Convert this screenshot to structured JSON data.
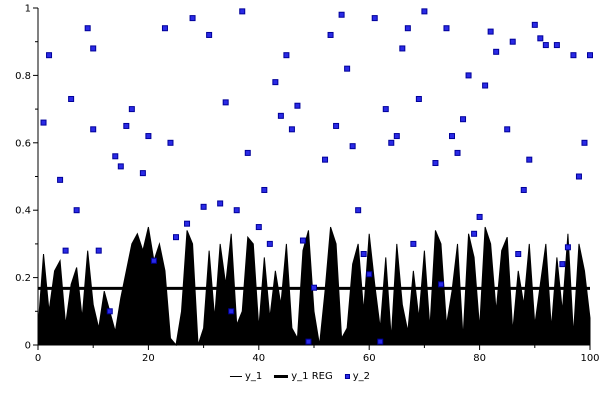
{
  "chart_data": {
    "type": "mixed",
    "title": "",
    "xlabel": "",
    "ylabel": "",
    "xlim": [
      0,
      100
    ],
    "ylim": [
      0,
      1
    ],
    "grid": false,
    "legend_position": "bottom-center",
    "xticks": {
      "major": [
        0,
        20,
        40,
        60,
        80,
        100
      ],
      "labels": [
        "0",
        "20",
        "40",
        "60",
        "80",
        "100"
      ],
      "minor_step": 10
    },
    "yticks": {
      "major": [
        0,
        0.2,
        0.4,
        0.6,
        0.8,
        1
      ],
      "labels": [
        "0",
        "0.2",
        "0.4",
        "0.6",
        "0.8",
        "1"
      ],
      "minor_step": 0.1
    },
    "series": [
      {
        "name": "y_1",
        "type": "area",
        "color": "#000000",
        "x_min": 0,
        "x_max": 100,
        "y": [
          0.05,
          0.27,
          0.1,
          0.22,
          0.25,
          0.06,
          0.18,
          0.23,
          0.08,
          0.28,
          0.12,
          0.05,
          0.16,
          0.1,
          0.04,
          0.14,
          0.22,
          0.3,
          0.33,
          0.28,
          0.35,
          0.25,
          0.3,
          0.22,
          0.02,
          0.0,
          0.1,
          0.34,
          0.3,
          0.0,
          0.05,
          0.28,
          0.08,
          0.3,
          0.18,
          0.33,
          0.06,
          0.1,
          0.32,
          0.3,
          0.05,
          0.26,
          0.08,
          0.22,
          0.12,
          0.3,
          0.05,
          0.02,
          0.28,
          0.34,
          0.1,
          0.0,
          0.16,
          0.35,
          0.3,
          0.02,
          0.05,
          0.24,
          0.3,
          0.1,
          0.33,
          0.18,
          0.05,
          0.26,
          0.02,
          0.3,
          0.12,
          0.04,
          0.22,
          0.08,
          0.28,
          0.05,
          0.34,
          0.3,
          0.06,
          0.16,
          0.3,
          0.02,
          0.33,
          0.26,
          0.05,
          0.35,
          0.3,
          0.1,
          0.28,
          0.32,
          0.04,
          0.22,
          0.12,
          0.3,
          0.06,
          0.18,
          0.3,
          0.05,
          0.26,
          0.1,
          0.33,
          0.03,
          0.3,
          0.22,
          0.08
        ]
      },
      {
        "name": "y_1 REG",
        "type": "line",
        "color": "#000000",
        "stroke_width": 3,
        "x": [
          0,
          100
        ],
        "y": [
          0.168,
          0.168
        ]
      },
      {
        "name": "y_2",
        "type": "scatter",
        "marker": "square",
        "marker_size": 5,
        "color": "#2a2ae6",
        "edge_color": "#00009a",
        "points": [
          [
            1,
            0.66
          ],
          [
            2,
            0.86
          ],
          [
            4,
            0.49
          ],
          [
            5,
            0.28
          ],
          [
            6,
            0.73
          ],
          [
            7,
            0.4
          ],
          [
            9,
            0.94
          ],
          [
            10,
            0.88
          ],
          [
            10,
            0.64
          ],
          [
            11,
            0.28
          ],
          [
            13,
            0.1
          ],
          [
            14,
            0.56
          ],
          [
            15,
            0.53
          ],
          [
            16,
            0.65
          ],
          [
            17,
            0.7
          ],
          [
            19,
            0.51
          ],
          [
            20,
            0.62
          ],
          [
            21,
            0.25
          ],
          [
            23,
            0.94
          ],
          [
            24,
            0.6
          ],
          [
            25,
            0.32
          ],
          [
            27,
            0.36
          ],
          [
            28,
            0.97
          ],
          [
            30,
            0.41
          ],
          [
            31,
            0.92
          ],
          [
            33,
            0.42
          ],
          [
            34,
            0.72
          ],
          [
            35,
            0.1
          ],
          [
            36,
            0.4
          ],
          [
            37,
            0.99
          ],
          [
            38,
            0.57
          ],
          [
            40,
            0.35
          ],
          [
            41,
            0.46
          ],
          [
            42,
            0.3
          ],
          [
            43,
            0.78
          ],
          [
            44,
            0.68
          ],
          [
            45,
            0.86
          ],
          [
            46,
            0.64
          ],
          [
            47,
            0.71
          ],
          [
            48,
            0.31
          ],
          [
            49,
            0.01
          ],
          [
            50,
            0.17
          ],
          [
            52,
            0.55
          ],
          [
            53,
            0.92
          ],
          [
            54,
            0.65
          ],
          [
            55,
            0.98
          ],
          [
            56,
            0.82
          ],
          [
            57,
            0.59
          ],
          [
            58,
            0.4
          ],
          [
            59,
            0.27
          ],
          [
            60,
            0.21
          ],
          [
            61,
            0.97
          ],
          [
            62,
            0.01
          ],
          [
            63,
            0.7
          ],
          [
            64,
            0.6
          ],
          [
            65,
            0.62
          ],
          [
            66,
            0.88
          ],
          [
            67,
            0.94
          ],
          [
            68,
            0.3
          ],
          [
            69,
            0.73
          ],
          [
            70,
            0.99
          ],
          [
            72,
            0.54
          ],
          [
            73,
            0.18
          ],
          [
            74,
            0.94
          ],
          [
            75,
            0.62
          ],
          [
            76,
            0.57
          ],
          [
            77,
            0.67
          ],
          [
            78,
            0.8
          ],
          [
            79,
            0.33
          ],
          [
            80,
            0.38
          ],
          [
            81,
            0.77
          ],
          [
            82,
            0.93
          ],
          [
            83,
            0.87
          ],
          [
            85,
            0.64
          ],
          [
            86,
            0.9
          ],
          [
            87,
            0.27
          ],
          [
            88,
            0.46
          ],
          [
            89,
            0.55
          ],
          [
            90,
            0.95
          ],
          [
            91,
            0.91
          ],
          [
            92,
            0.89
          ],
          [
            94,
            0.89
          ],
          [
            95,
            0.24
          ],
          [
            96,
            0.29
          ],
          [
            97,
            0.86
          ],
          [
            98,
            0.5
          ],
          [
            99,
            0.6
          ],
          [
            100,
            0.86
          ]
        ]
      }
    ],
    "legend": {
      "items": [
        {
          "label": "y_1",
          "swatch": "thin-line"
        },
        {
          "label": "y_1 REG",
          "swatch": "thick-line"
        },
        {
          "label": "y_2",
          "swatch": "blue-square"
        }
      ]
    }
  }
}
